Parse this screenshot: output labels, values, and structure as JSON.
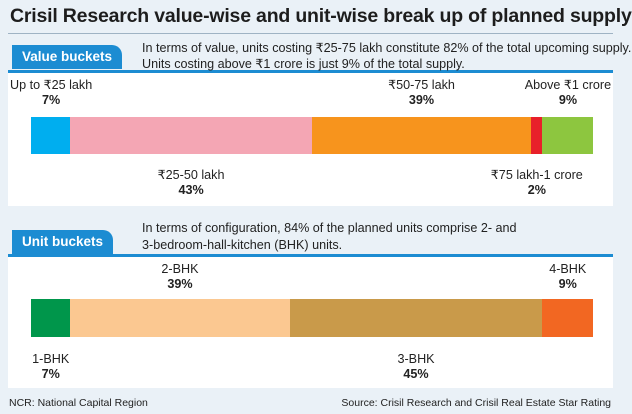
{
  "title": "Crisil Research value-wise and unit-wise break up of planned supply",
  "value_section": {
    "tag": "Value buckets",
    "desc_line1": "In terms of value, units costing ₹25-75 lakh constitute 82% of the total upcoming supply.",
    "desc_line2": "Units costing above ₹1 crore is just 9% of the total supply."
  },
  "unit_section": {
    "tag": "Unit buckets",
    "desc_line1": "In terms of configuration, 84% of the planned units comprise 2- and",
    "desc_line2": "3-bedroom-hall-kitchen (BHK) units."
  },
  "footnote": "NCR: National Capital Region",
  "source": "Source: Crisil Research and Crisil Real Estate Star Rating",
  "chart_data": [
    {
      "type": "bar",
      "stacked": true,
      "orientation": "horizontal",
      "categories": [
        "Up to ₹25 lakh",
        "₹25-50 lakh",
        "₹50-75 lakh",
        "₹75 lakh-1 crore",
        "Above ₹1 crore"
      ],
      "values": [
        7,
        43,
        39,
        2,
        9
      ],
      "value_labels": [
        "7%",
        "43%",
        "39%",
        "2%",
        "9%"
      ],
      "colors": [
        "#00aeef",
        "#f4a6b4",
        "#f7941d",
        "#e8202a",
        "#8dc63f"
      ],
      "label_positions": [
        "above",
        "below",
        "above",
        "below",
        "above"
      ]
    },
    {
      "type": "bar",
      "stacked": true,
      "orientation": "horizontal",
      "categories": [
        "1-BHK",
        "2-BHK",
        "3-BHK",
        "4-BHK"
      ],
      "values": [
        7,
        39,
        45,
        9
      ],
      "value_labels": [
        "7%",
        "39%",
        "45%",
        "9%"
      ],
      "colors": [
        "#00964b",
        "#fbc891",
        "#c99a4a",
        "#f26722"
      ],
      "label_positions": [
        "below",
        "above",
        "below",
        "above"
      ]
    }
  ]
}
